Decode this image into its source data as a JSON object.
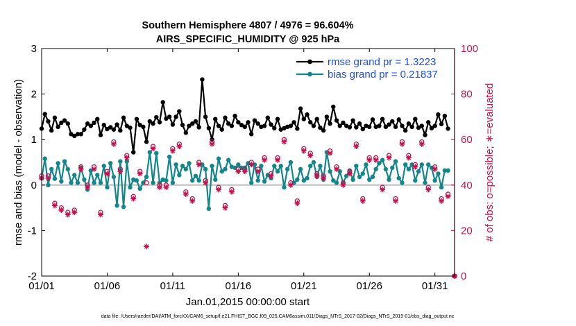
{
  "chart_data": {
    "type": "line",
    "title": "Southern Hemisphere 4807 / 4976 = 96.604%",
    "subtitle": "AIRS_SPECIFIC_HUMIDITY @ 925 hPa",
    "xlabel": "Jan.01,2015 00:00:00 start",
    "ylabel": "rmse and bias (model - observation)",
    "y2label": "# of obs: o=possible; ∗=evaluated",
    "footnote": "data file: /Users/raeder/DAI/ATM_forcXX/CAM6_setup/f.e21.FHIST_BGC.f09_025.CAM6assim.011/Diags_NTrS_2017-02/Diags_NTrS_2015-01/obs_diag_output.nc",
    "xlim": [
      0,
      31.5
    ],
    "ylim": [
      -2,
      3
    ],
    "y2lim": [
      0,
      100
    ],
    "xticks": [
      0,
      5,
      10,
      15,
      20,
      25,
      30
    ],
    "xtick_labels": [
      "01/01",
      "01/06",
      "01/11",
      "01/16",
      "01/21",
      "01/26",
      "01/31"
    ],
    "yticks": [
      -2,
      -1,
      0,
      1,
      2,
      3
    ],
    "ytick_labels": [
      "-2",
      "-1",
      "0",
      "1",
      "2",
      "3"
    ],
    "y2ticks": [
      0,
      20,
      40,
      60,
      80,
      100
    ],
    "y2tick_labels": [
      "0",
      "20",
      "40",
      "60",
      "80",
      "100"
    ],
    "legend_location": "top-right",
    "colors": {
      "rmse": "#000000",
      "bias": "#12868a",
      "obs": "#c8104e",
      "zero": "#bdbdbd",
      "legend_text": "#1f4ee0"
    },
    "series": [
      {
        "name": "rmse grand pr = 1.3223",
        "x": [
          0.0,
          0.25,
          0.5,
          0.75,
          1.0,
          1.25,
          1.5,
          1.75,
          2.0,
          2.25,
          2.5,
          2.75,
          3.0,
          3.25,
          3.5,
          3.75,
          4.0,
          4.25,
          4.5,
          4.75,
          5.0,
          5.25,
          5.5,
          5.75,
          6.0,
          6.25,
          6.5,
          6.75,
          7.0,
          7.25,
          7.5,
          7.75,
          8.0,
          8.25,
          8.5,
          8.75,
          9.0,
          9.25,
          9.5,
          9.75,
          10.0,
          10.25,
          10.5,
          10.75,
          11.0,
          11.25,
          11.5,
          11.75,
          12.0,
          12.25,
          12.5,
          12.75,
          13.0,
          13.25,
          13.5,
          13.75,
          14.0,
          14.25,
          14.5,
          14.75,
          15.0,
          15.25,
          15.5,
          15.75,
          16.0,
          16.25,
          16.5,
          16.75,
          17.0,
          17.25,
          17.5,
          17.75,
          18.0,
          18.25,
          18.5,
          18.75,
          19.0,
          19.25,
          19.5,
          19.75,
          20.0,
          20.25,
          20.5,
          20.75,
          21.0,
          21.25,
          21.5,
          21.75,
          22.0,
          22.25,
          22.5,
          22.75,
          23.0,
          23.25,
          23.5,
          23.75,
          24.0,
          24.25,
          24.5,
          24.75,
          25.0,
          25.25,
          25.5,
          25.75,
          26.0,
          26.25,
          26.5,
          26.75,
          27.0,
          27.25,
          27.5,
          27.75,
          28.0,
          28.25,
          28.5,
          28.75,
          29.0,
          29.25,
          29.5,
          29.75,
          30.0,
          30.25,
          30.5,
          30.75,
          31.0
        ],
        "values": [
          1.24,
          1.56,
          1.4,
          1.2,
          1.48,
          1.28,
          1.37,
          1.42,
          1.35,
          1.12,
          1.08,
          1.12,
          1.12,
          1.22,
          1.35,
          1.3,
          1.37,
          1.45,
          1.1,
          1.32,
          1.23,
          1.27,
          1.22,
          1.33,
          1.2,
          1.48,
          1.3,
          1.26,
          0.72,
          1.45,
          1.32,
          1.28,
          0.95,
          1.4,
          1.35,
          1.49,
          1.38,
          1.82,
          1.46,
          1.5,
          1.33,
          1.5,
          1.62,
          1.32,
          1.15,
          1.3,
          1.35,
          1.4,
          1.27,
          2.32,
          1.5,
          1.25,
          1.0,
          1.45,
          1.3,
          1.22,
          1.48,
          1.35,
          1.3,
          1.52,
          1.38,
          1.32,
          1.28,
          1.38,
          1.12,
          1.42,
          1.35,
          1.28,
          1.3,
          1.48,
          1.33,
          1.25,
          1.45,
          1.22,
          1.25,
          1.28,
          1.3,
          1.38,
          1.24,
          1.68,
          1.45,
          1.55,
          1.38,
          1.3,
          1.45,
          1.26,
          1.2,
          1.5,
          1.35,
          1.72,
          1.42,
          1.3,
          1.37,
          1.3,
          1.27,
          1.42,
          1.27,
          1.35,
          1.23,
          1.3,
          1.28,
          1.44,
          1.28,
          1.3,
          1.45,
          1.28,
          1.33,
          1.4,
          1.28,
          1.44,
          1.3,
          1.2,
          1.35,
          1.28,
          1.45,
          1.26,
          1.3,
          1.1,
          1.38,
          1.25,
          1.3,
          1.55,
          1.34,
          1.52,
          1.24
        ]
      },
      {
        "name": "bias grand pr = 0.21837",
        "x": [
          0.0,
          0.25,
          0.5,
          0.75,
          1.0,
          1.25,
          1.5,
          1.75,
          2.0,
          2.25,
          2.5,
          2.75,
          3.0,
          3.25,
          3.5,
          3.75,
          4.0,
          4.25,
          4.5,
          4.75,
          5.0,
          5.25,
          5.5,
          5.75,
          6.0,
          6.25,
          6.5,
          6.75,
          7.0,
          7.25,
          7.5,
          7.75,
          8.0,
          8.25,
          8.5,
          8.75,
          9.0,
          9.25,
          9.5,
          9.75,
          10.0,
          10.25,
          10.5,
          10.75,
          11.0,
          11.25,
          11.5,
          11.75,
          12.0,
          12.25,
          12.5,
          12.75,
          13.0,
          13.25,
          13.5,
          13.75,
          14.0,
          14.25,
          14.5,
          14.75,
          15.0,
          15.25,
          15.5,
          15.75,
          16.0,
          16.25,
          16.5,
          16.75,
          17.0,
          17.25,
          17.5,
          17.75,
          18.0,
          18.25,
          18.5,
          18.75,
          19.0,
          19.25,
          19.5,
          19.75,
          20.0,
          20.25,
          20.5,
          20.75,
          21.0,
          21.25,
          21.5,
          21.75,
          22.0,
          22.25,
          22.5,
          22.75,
          23.0,
          23.25,
          23.5,
          23.75,
          24.0,
          24.25,
          24.5,
          24.75,
          25.0,
          25.25,
          25.5,
          25.75,
          26.0,
          26.25,
          26.5,
          26.75,
          27.0,
          27.25,
          27.5,
          27.75,
          28.0,
          28.25,
          28.5,
          28.75,
          29.0,
          29.25,
          29.5,
          29.75,
          30.0,
          30.25,
          30.5,
          30.75,
          31.0
        ],
        "values": [
          0.15,
          0.58,
          0.0,
          0.35,
          0.14,
          0.48,
          0.08,
          0.52,
          0.35,
          0.05,
          0.22,
          0.05,
          0.38,
          0.12,
          -0.1,
          0.32,
          0.05,
          0.22,
          0.05,
          0.42,
          -0.05,
          0.48,
          0.18,
          -0.45,
          0.52,
          -0.48,
          0.52,
          -0.05,
          0.12,
          0.1,
          -0.08,
          0.05,
          0.18,
          0.72,
          0.05,
          0.7,
          0.05,
          0.12,
          0.1,
          0.62,
          0.05,
          0.45,
          0.22,
          0.42,
          0.35,
          0.48,
          0.1,
          0.2,
          0.1,
          0.45,
          0.35,
          -0.52,
          0.42,
          0.12,
          0.58,
          0.3,
          0.35,
          0.55,
          0.4,
          0.38,
          0.45,
          0.38,
          0.38,
          0.48,
          0.05,
          0.45,
          0.1,
          0.42,
          0.08,
          0.22,
          0.15,
          0.42,
          0.3,
          0.42,
          -0.05,
          0.35,
          0.5,
          0.05,
          0.12,
          0.35,
          0.1,
          0.15,
          0.42,
          0.5,
          0.18,
          0.42,
          0.12,
          0.72,
          0.3,
          0.1,
          0.05,
          0.3,
          0.05,
          0.2,
          0.32,
          0.12,
          0.42,
          0.18,
          0.25,
          0.45,
          0.12,
          0.18,
          0.35,
          0.48,
          0.55,
          0.35,
          0.12,
          0.38,
          0.52,
          0.15,
          0.05,
          0.45,
          0.35,
          0.45,
          0.1,
          0.3,
          0.45,
          0.05,
          0.45,
          0.38,
          0.1,
          0.25,
          -0.05,
          0.32,
          0.32
        ]
      }
    ],
    "obs_possible": {
      "x": [
        0.0,
        0.5,
        1.0,
        1.5,
        2.0,
        2.5,
        3.0,
        3.5,
        4.0,
        4.5,
        5.0,
        5.5,
        6.0,
        6.5,
        7.0,
        7.5,
        8.0,
        8.5,
        9.0,
        9.5,
        10.0,
        10.5,
        11.0,
        11.5,
        12.0,
        12.5,
        13.0,
        13.5,
        14.0,
        14.5,
        15.0,
        15.5,
        16.0,
        16.5,
        17.0,
        17.5,
        18.0,
        18.5,
        19.0,
        19.5,
        20.0,
        20.5,
        21.0,
        21.5,
        22.0,
        22.5,
        23.0,
        23.5,
        24.0,
        24.5,
        25.0,
        25.5,
        26.0,
        26.5,
        27.0,
        27.5,
        28.0,
        28.5,
        29.0,
        29.5,
        30.0,
        30.5,
        31.0,
        31.5
      ],
      "values": [
        44,
        44,
        32,
        30,
        28,
        29,
        48,
        40,
        48,
        28,
        46,
        59,
        47,
        53,
        35,
        46,
        41,
        57,
        40,
        40,
        56,
        58,
        37,
        34,
        50,
        42,
        59,
        39,
        31,
        38,
        47,
        47,
        50,
        47,
        52,
        45,
        52,
        60,
        41,
        33,
        56,
        54,
        45,
        44,
        55,
        48,
        41,
        46,
        58,
        34,
        52,
        52,
        39,
        53,
        34,
        59,
        53,
        49,
        59,
        39,
        48,
        34,
        36,
        0
      ]
    },
    "obs_evaluated": {
      "x": [
        0.0,
        0.5,
        1.0,
        1.5,
        2.0,
        2.5,
        3.0,
        3.5,
        4.0,
        4.5,
        5.0,
        5.5,
        6.0,
        6.5,
        7.0,
        7.5,
        8.0,
        8.5,
        9.0,
        9.5,
        10.0,
        10.5,
        11.0,
        11.5,
        12.0,
        12.5,
        13.0,
        13.5,
        14.0,
        14.5,
        15.0,
        15.5,
        16.0,
        16.5,
        17.0,
        17.5,
        18.0,
        18.5,
        19.0,
        19.5,
        20.0,
        20.5,
        21.0,
        21.5,
        22.0,
        22.5,
        23.0,
        23.5,
        24.0,
        24.5,
        25.0,
        25.5,
        26.0,
        26.5,
        27.0,
        27.5,
        28.0,
        28.5,
        29.0,
        29.5,
        30.0,
        30.5,
        31.0,
        31.5
      ],
      "values": [
        43,
        43,
        31,
        29,
        27,
        28,
        47,
        39,
        47,
        27,
        45,
        58,
        46,
        52,
        34,
        45,
        13,
        56,
        39,
        39,
        55,
        57,
        36,
        33,
        49,
        41,
        58,
        38,
        30,
        37,
        46,
        46,
        49,
        46,
        51,
        44,
        51,
        59,
        40,
        32,
        55,
        53,
        44,
        43,
        54,
        47,
        40,
        45,
        57,
        33,
        51,
        51,
        38,
        52,
        33,
        58,
        52,
        48,
        58,
        38,
        47,
        33,
        35,
        0
      ]
    }
  }
}
